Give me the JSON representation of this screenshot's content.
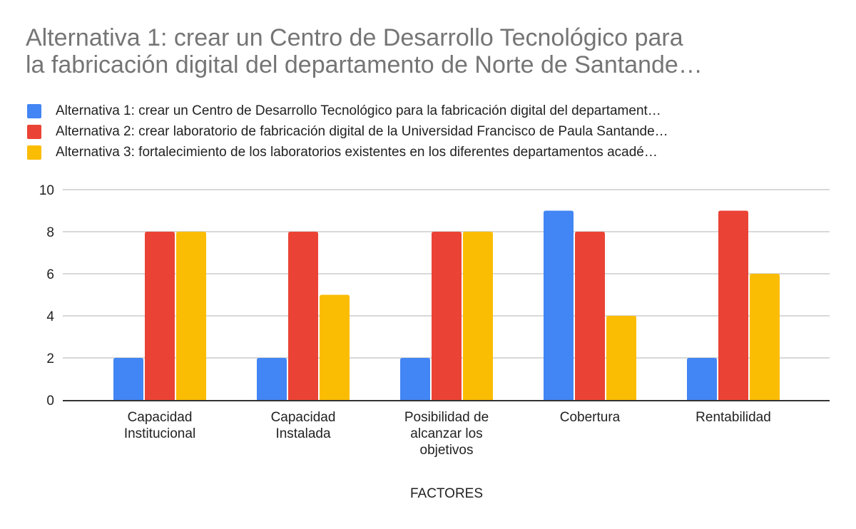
{
  "chart_data": {
    "type": "bar",
    "title_lines": [
      "Alternativa 1: crear un Centro de Desarrollo Tecnológico para",
      "la fabricación digital del departamento de Norte de Santande…"
    ],
    "xlabel": "FACTORES",
    "ylabel": "",
    "ylim": [
      0,
      10
    ],
    "yticks": [
      0,
      2,
      4,
      6,
      8,
      10
    ],
    "grid": true,
    "legend_position": "top",
    "categories": [
      [
        "Capacidad",
        "Institucional"
      ],
      [
        "Capacidad",
        "Instalada"
      ],
      [
        "Posibilidad de",
        "alcanzar los",
        "objetivos"
      ],
      [
        "Cobertura"
      ],
      [
        "Rentabilidad"
      ]
    ],
    "series": [
      {
        "name": "Alternativa 1: crear un Centro de Desarrollo Tecnológico para la fabricación digital del departament…",
        "color": "#4285F4",
        "values": [
          2,
          2,
          2,
          9,
          2
        ]
      },
      {
        "name": "Alternativa 2: crear laboratorio de fabricación digital de la Universidad Francisco de Paula Santande…",
        "color": "#EA4335",
        "values": [
          8,
          8,
          8,
          8,
          9
        ]
      },
      {
        "name": "Alternativa 3: fortalecimiento de los laboratorios existentes en los diferentes departamentos acadé…",
        "color": "#FBBC04",
        "values": [
          8,
          5,
          8,
          4,
          6
        ]
      }
    ]
  }
}
